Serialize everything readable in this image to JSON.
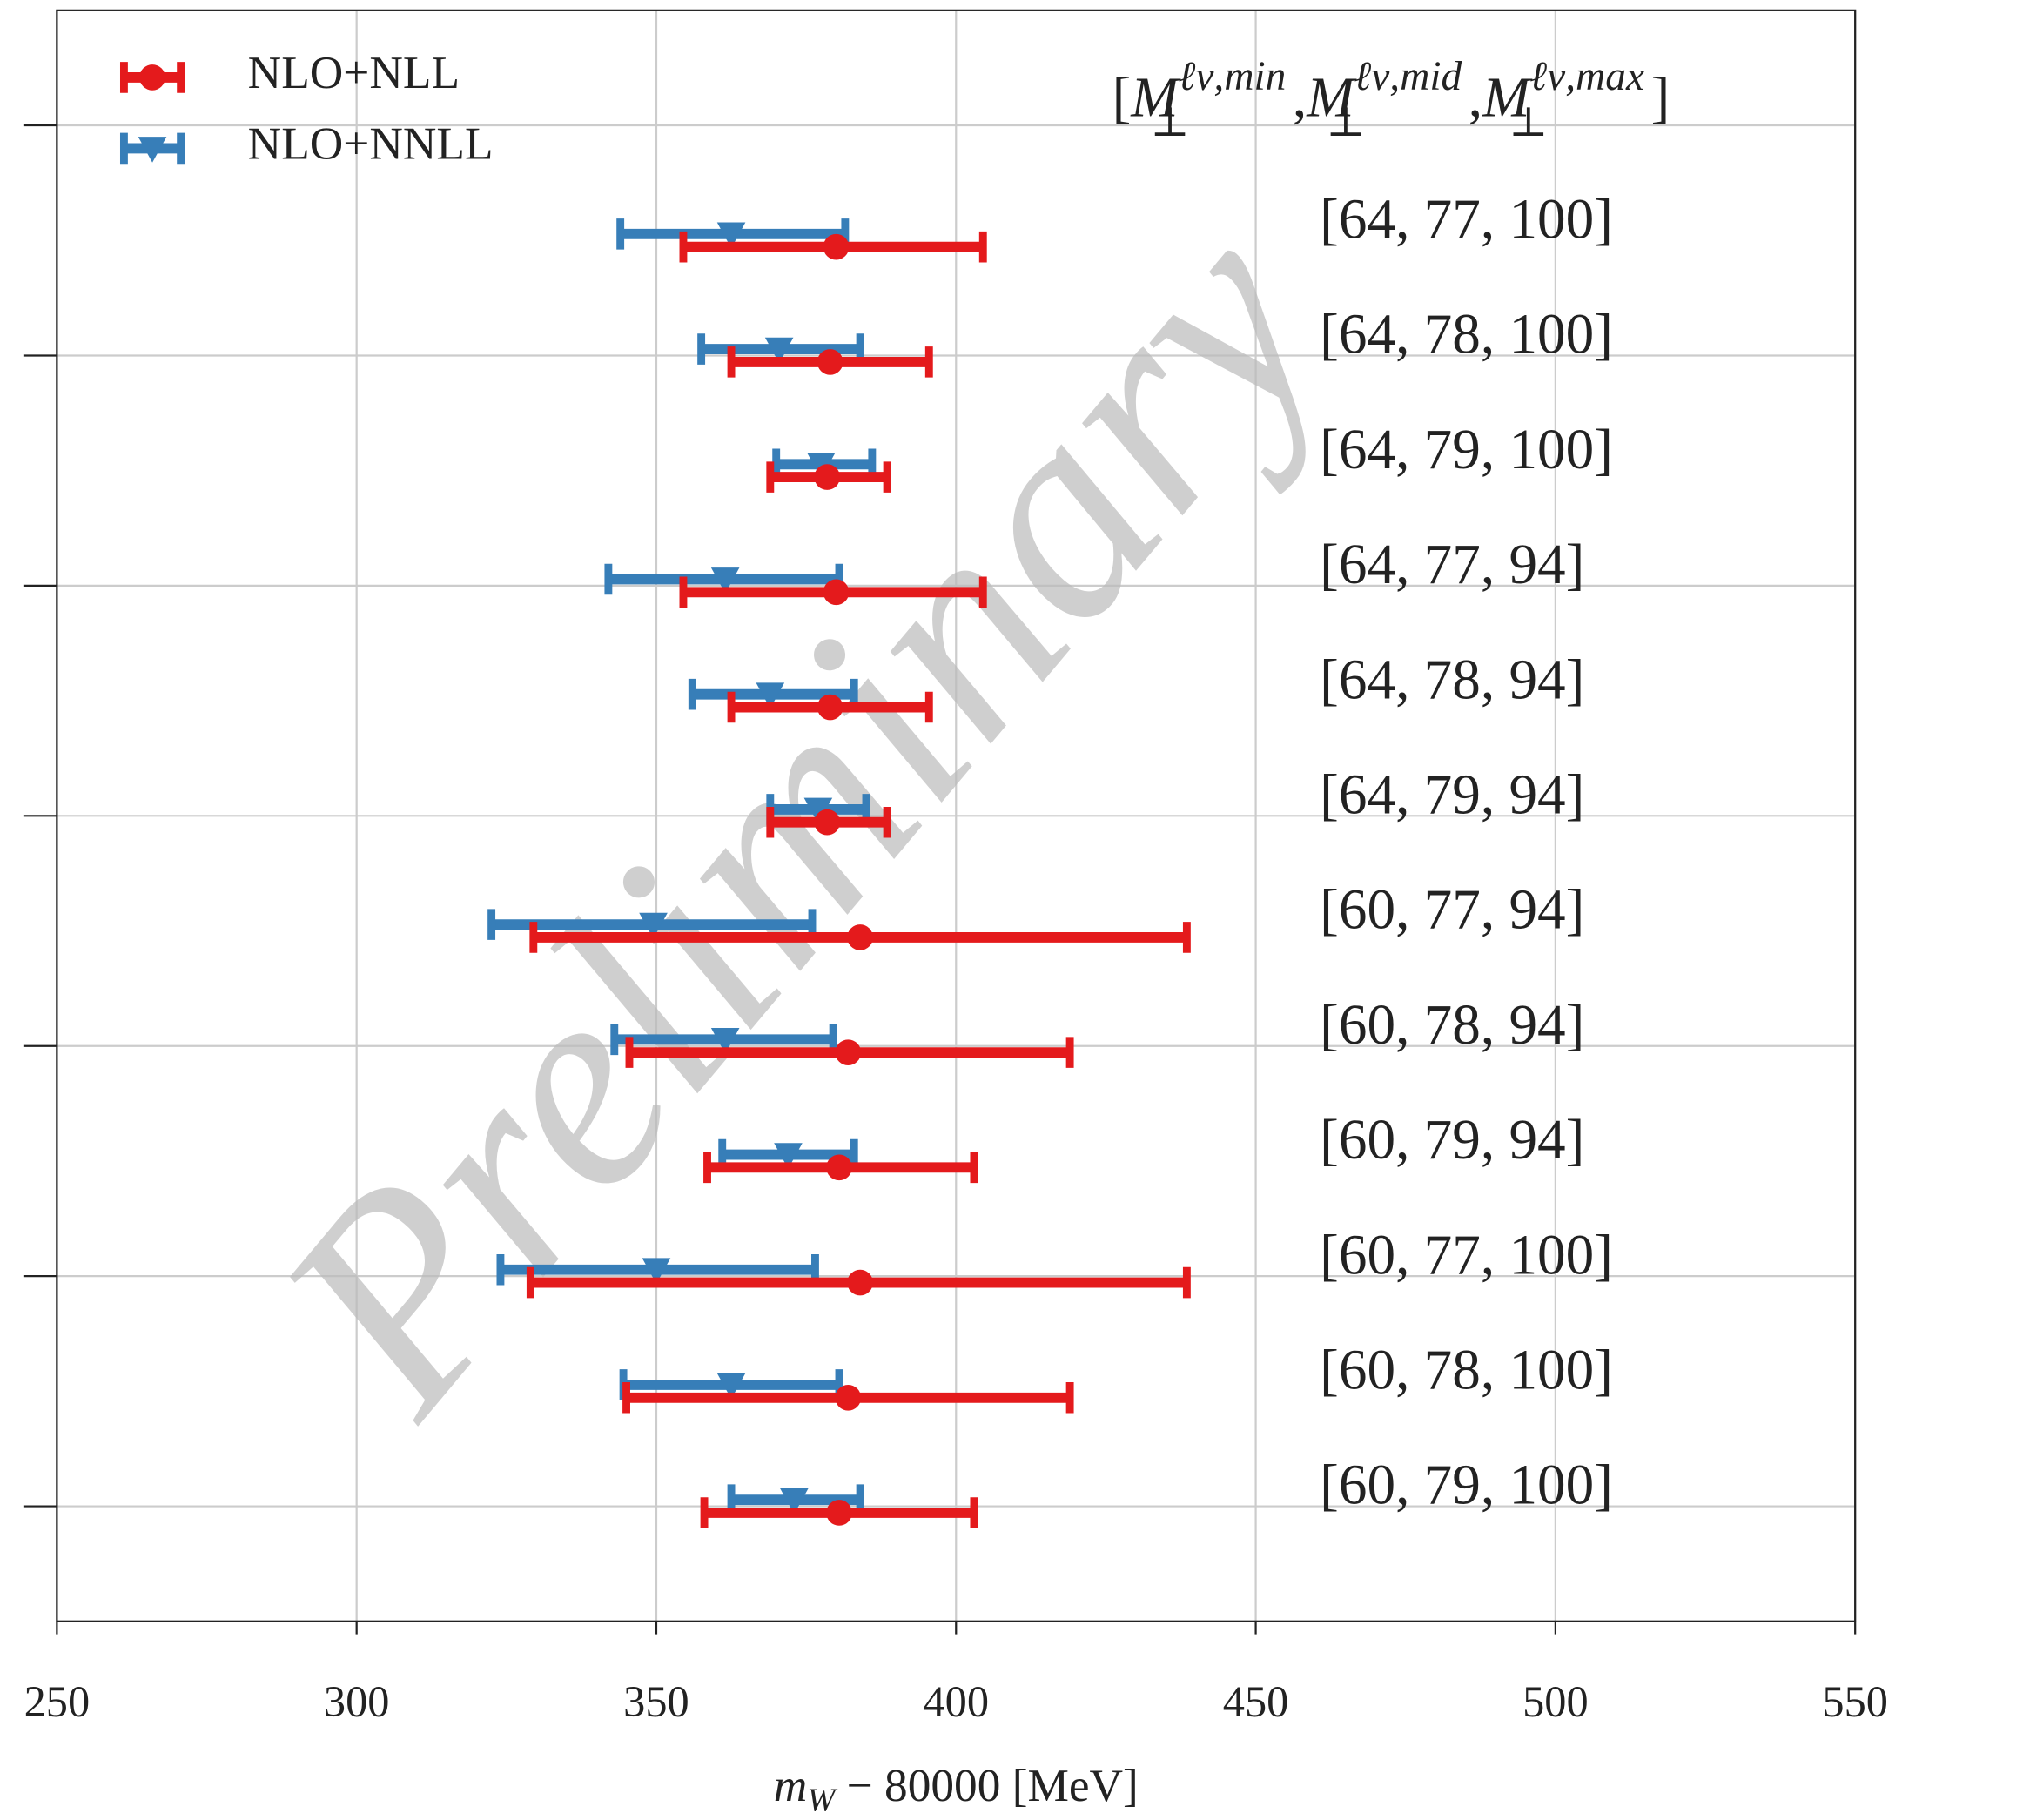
{
  "chart_data": {
    "type": "errorbar",
    "column_header": {
      "open": "[",
      "base": "M",
      "sub": "⊥",
      "sups": [
        "ℓν,min",
        "ℓν,mid",
        "ℓν,max"
      ],
      "sep": ",",
      "close": "]"
    },
    "categories": [
      "[64, 77, 100]",
      "[64, 78, 100]",
      "[64, 79, 100]",
      "[64, 77, 94]",
      "[64, 78, 94]",
      "[64, 79, 94]",
      "[60, 77, 94]",
      "[60, 78, 94]",
      "[60, 79, 94]",
      "[60, 77, 100]",
      "[60, 78, 100]",
      "[60, 79, 100]"
    ],
    "y": [
      1,
      2,
      3,
      4,
      5,
      6,
      7,
      8,
      9,
      10,
      11,
      12
    ],
    "ylim": [
      13,
      -1
    ],
    "yticks": [
      0,
      2,
      4,
      6,
      8,
      10,
      12
    ],
    "series": [
      {
        "name": "NLO+NLL",
        "color": "#e41a1c",
        "marker": "circle",
        "values": [
          380,
          379,
          378.5,
          380,
          379,
          378.5,
          384,
          382,
          380.5,
          384,
          382,
          380.5
        ],
        "lower": [
          354.5,
          362.5,
          369,
          354.5,
          362.5,
          369,
          329.5,
          345.5,
          358.5,
          329,
          345,
          358
        ],
        "upper": [
          404.5,
          395.5,
          388.5,
          404.5,
          395.5,
          388.5,
          438.5,
          419,
          403,
          438.5,
          419,
          403
        ]
      },
      {
        "name": "NLO+NNLL",
        "color": "#377eb8",
        "marker": "triangle-down",
        "values": [
          362.5,
          370.5,
          377.5,
          361.5,
          369,
          377,
          349.5,
          361.5,
          372,
          350,
          362.5,
          373
        ],
        "lower": [
          344,
          357.5,
          370,
          342,
          356,
          369,
          322.5,
          343,
          361,
          324,
          344.5,
          362.5
        ],
        "upper": [
          381.5,
          384,
          386,
          380.5,
          383,
          385,
          376,
          379.5,
          383,
          376.5,
          380.5,
          384
        ]
      }
    ],
    "xlim": [
      250,
      550
    ],
    "xticks": [
      250,
      300,
      350,
      400,
      450,
      500,
      550
    ],
    "grid": true,
    "x_label": {
      "var": "m",
      "sub": "W",
      "rest": " − 80000 [MeV]"
    },
    "legend": "upper left",
    "watermark": "Preliminary"
  }
}
